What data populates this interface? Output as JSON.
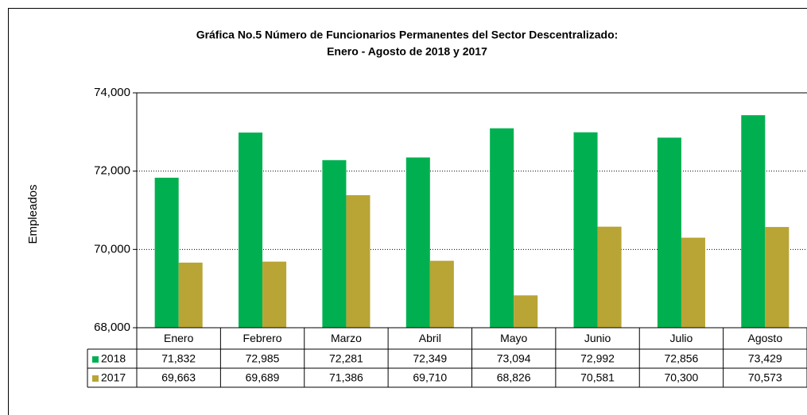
{
  "chart_data": {
    "type": "bar",
    "title": "Gráfica No.5 Número de Funcionarios Permanentes del Sector Descentralizado:",
    "subtitle": "Enero - Agosto de 2018 y 2017",
    "ylabel": "Empleados",
    "categories": [
      "Enero",
      "Febrero",
      "Marzo",
      "Abril",
      "Mayo",
      "Junio",
      "Julio",
      "Agosto"
    ],
    "series": [
      {
        "name": "2018",
        "color": "#00b050",
        "values": [
          71832,
          72985,
          72281,
          72349,
          73094,
          72992,
          72856,
          73429
        ],
        "value_labels": [
          "71,832",
          "72,985",
          "72,281",
          "72,349",
          "73,094",
          "72,992",
          "72,856",
          "73,429"
        ]
      },
      {
        "name": "2017",
        "color": "#b8a535",
        "values": [
          69663,
          69689,
          71386,
          69710,
          68826,
          70581,
          70300,
          70573
        ],
        "value_labels": [
          "69,663",
          "69,689",
          "71,386",
          "69,710",
          "68,826",
          "70,581",
          "70,300",
          "70,573"
        ]
      }
    ],
    "ylim": [
      68000,
      74000
    ],
    "yticks": [
      {
        "value": 68000,
        "label": "68,000"
      },
      {
        "value": 70000,
        "label": "70,000"
      },
      {
        "value": 72000,
        "label": "72,000"
      },
      {
        "value": 74000,
        "label": "74,000"
      }
    ],
    "grid": true
  }
}
